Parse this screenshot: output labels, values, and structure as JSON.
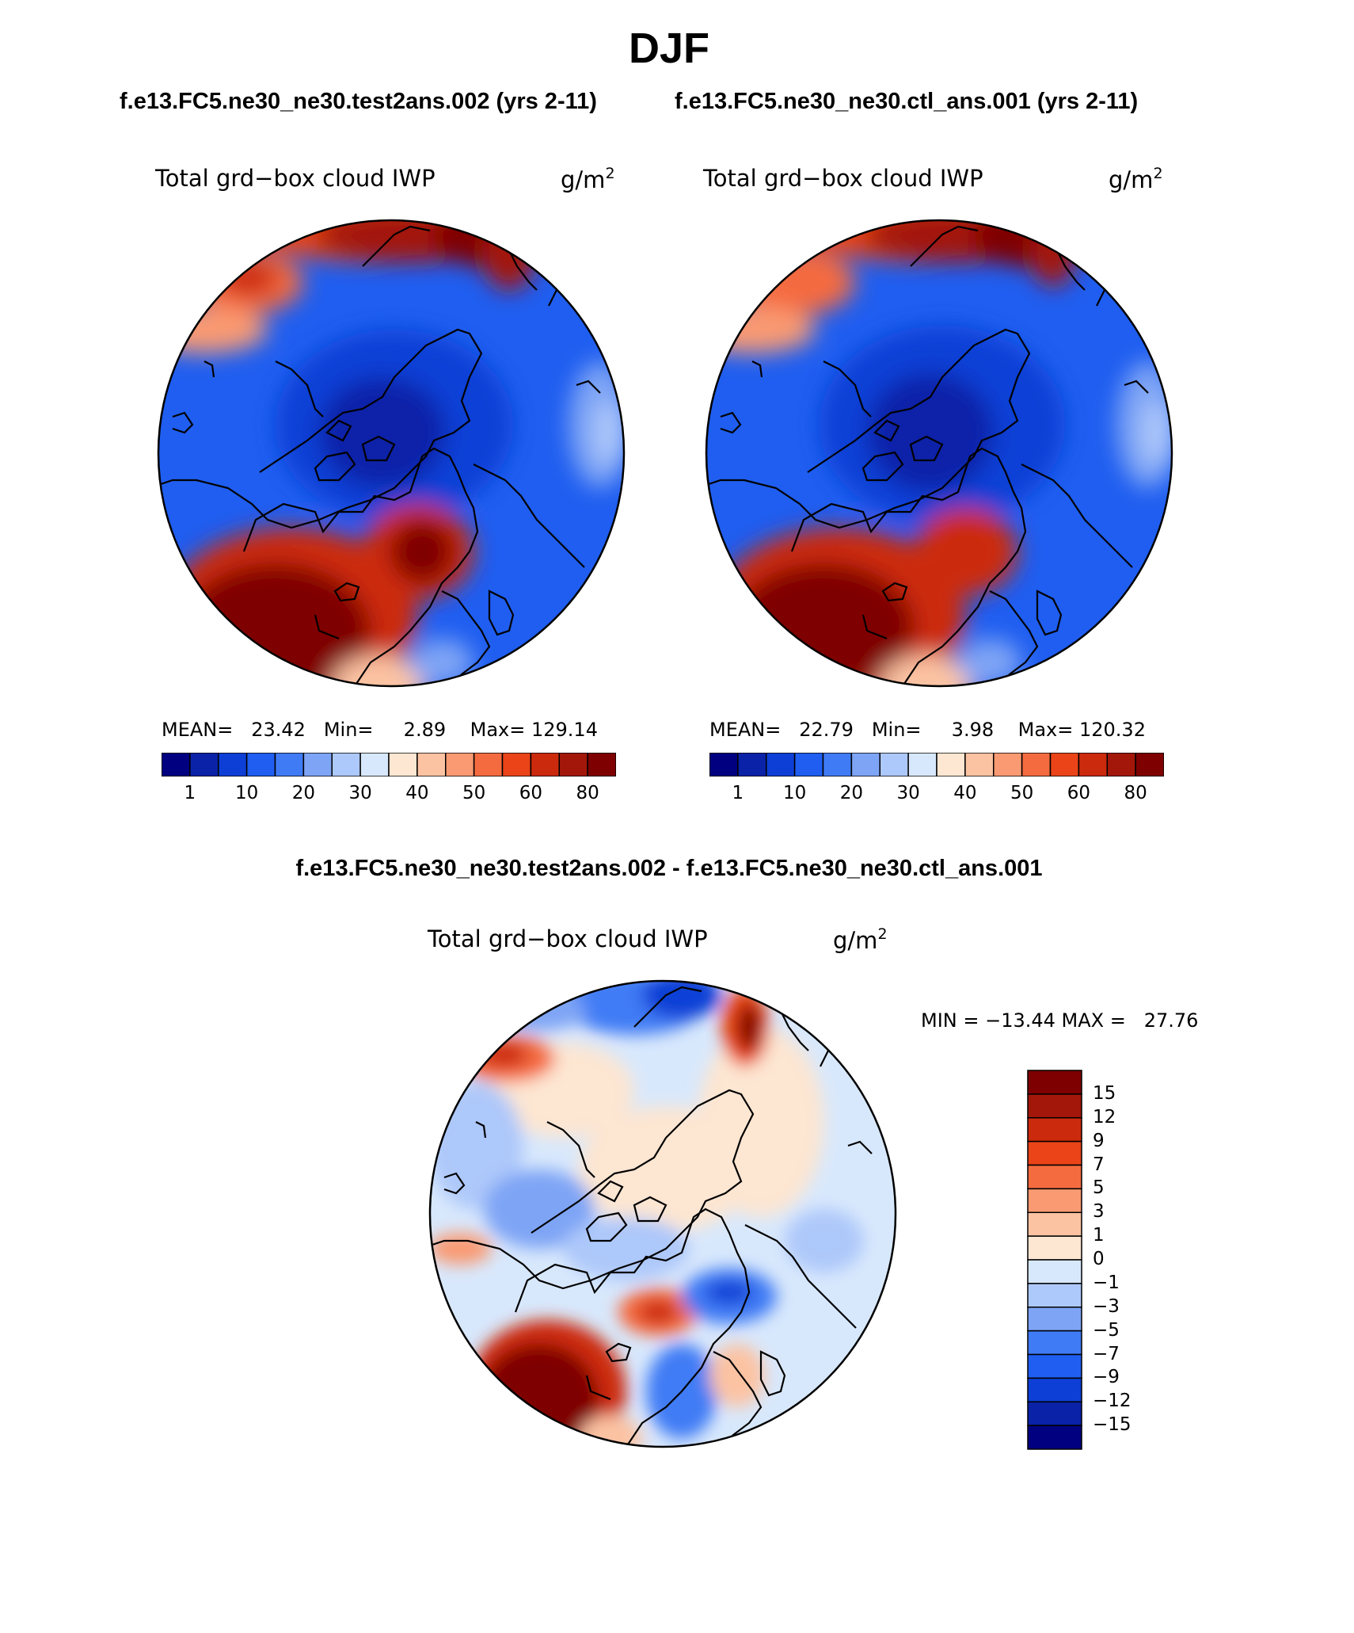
{
  "title": "DJF",
  "case_titles": {
    "test": "f.e13.FC5.ne30_ne30.test2ans.002 (yrs 2-11)",
    "control": "f.e13.FC5.ne30_ne30.ctl_ans.001 (yrs 2-11)",
    "difference": "f.e13.FC5.ne30_ne30.test2ans.002 - f.e13.FC5.ne30_ne30.ctl_ans.001"
  },
  "panels": [
    {
      "label": "Total grd−box cloud IWP",
      "units_base": "g/m",
      "units_exp": "2",
      "stats": "MEAN=   23.42   Min=     2.89    Max= 129.14"
    },
    {
      "label": "Total grd−box cloud IWP",
      "units_base": "g/m",
      "units_exp": "2",
      "stats": "MEAN=   22.79   Min=     3.98    Max= 120.32"
    },
    {
      "label": "Total grd−box cloud IWP",
      "units_base": "g/m",
      "units_exp": "2",
      "stats": "MIN = −13.44 MAX =   27.76"
    }
  ],
  "colorbar_abs": {
    "ticks": [
      "1",
      "10",
      "20",
      "30",
      "40",
      "50",
      "60",
      "80"
    ],
    "colors": [
      "#000080",
      "#0a22a8",
      "#0d3fd6",
      "#1f5ef0",
      "#3f7bf5",
      "#7ea4f5",
      "#adc8fa",
      "#d8e8fc",
      "#fde6d2",
      "#fcc3a3",
      "#f99a72",
      "#f46b3f",
      "#ea4418",
      "#cc2a0c",
      "#a3170a",
      "#7f0000"
    ]
  },
  "colorbar_diff": {
    "ticks": [
      "15",
      "12",
      "9",
      "7",
      "5",
      "3",
      "1",
      "0",
      "−1",
      "−3",
      "−5",
      "−7",
      "−9",
      "−12",
      "−15"
    ],
    "colors": [
      "#7f0000",
      "#a3170a",
      "#cc2a0c",
      "#ea4418",
      "#f46b3f",
      "#f99a72",
      "#fcc3a3",
      "#fde6d2",
      "#d8e8fc",
      "#adc8fa",
      "#7ea4f5",
      "#3f7bf5",
      "#1f5ef0",
      "#0d3fd6",
      "#0a22a8",
      "#000080"
    ]
  }
}
